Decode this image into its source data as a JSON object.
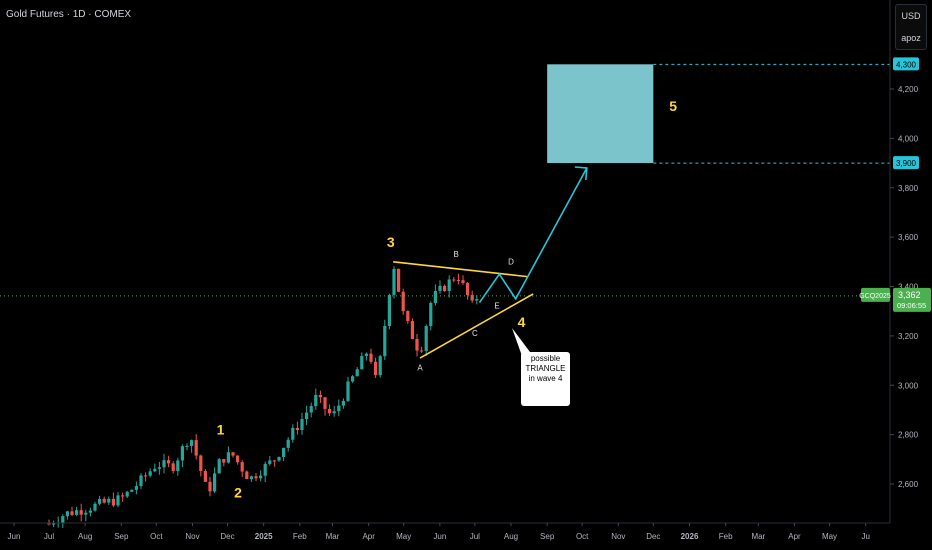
{
  "header": {
    "title": "Gold Futures · 1D · COMEX"
  },
  "scale": {
    "currency": "USD",
    "mode": "apoz"
  },
  "chart_data": {
    "type": "candlestick",
    "symbol": "GCQ2025",
    "last_price": 3362,
    "last_price_label": "3,362",
    "countdown": "09:06:55",
    "ylim": [
      2480,
      4420
    ],
    "y_ticks": [
      2600,
      2800,
      3000,
      3200,
      3400,
      3600,
      3800,
      4000,
      4200
    ],
    "y_tick_labels": [
      "2,600",
      "2,800",
      "3,000",
      "3,200",
      "3,400",
      "3,600",
      "3,800",
      "4,000",
      "4,200"
    ],
    "x_labels": [
      "Jun",
      "Jul",
      "Aug",
      "Sep",
      "Oct",
      "Nov",
      "Dec",
      "2025",
      "Feb",
      "Mar",
      "Apr",
      "May",
      "Jun",
      "Jul",
      "Aug",
      "Sep",
      "Oct",
      "Nov",
      "Dec",
      "2026",
      "Feb",
      "Mar",
      "Apr",
      "May",
      "Ju"
    ],
    "price_path": [
      {
        "date": "2024-07-01",
        "price": 2440
      },
      {
        "date": "2024-07-15",
        "price": 2480
      },
      {
        "date": "2024-08-01",
        "price": 2500
      },
      {
        "date": "2024-08-15",
        "price": 2520
      },
      {
        "date": "2024-09-01",
        "price": 2540
      },
      {
        "date": "2024-09-15",
        "price": 2600
      },
      {
        "date": "2024-10-01",
        "price": 2680
      },
      {
        "date": "2024-10-15",
        "price": 2670
      },
      {
        "date": "2024-10-30",
        "price": 2800
      },
      {
        "date": "2024-11-14",
        "price": 2560
      },
      {
        "date": "2024-11-25",
        "price": 2700
      },
      {
        "date": "2024-12-05",
        "price": 2720
      },
      {
        "date": "2024-12-20",
        "price": 2620
      },
      {
        "date": "2025-01-10",
        "price": 2700
      },
      {
        "date": "2025-02-01",
        "price": 2850
      },
      {
        "date": "2025-02-15",
        "price": 2950
      },
      {
        "date": "2025-03-01",
        "price": 2870
      },
      {
        "date": "2025-03-15",
        "price": 3000
      },
      {
        "date": "2025-04-01",
        "price": 3150
      },
      {
        "date": "2025-04-08",
        "price": 3000
      },
      {
        "date": "2025-04-22",
        "price": 3500
      },
      {
        "date": "2025-05-01",
        "price": 3280
      },
      {
        "date": "2025-05-15",
        "price": 3130
      },
      {
        "date": "2025-05-25",
        "price": 3350
      },
      {
        "date": "2025-06-05",
        "price": 3400
      },
      {
        "date": "2025-06-16",
        "price": 3450
      },
      {
        "date": "2025-06-30",
        "price": 3310
      },
      {
        "date": "2025-07-03",
        "price": 3362
      }
    ],
    "target_zone": {
      "from": 3900,
      "to": 4300,
      "label_low": "3,900",
      "label_high": "4,300"
    },
    "triangle_upper": [
      {
        "date": "2025-04-22",
        "price": 3500
      },
      {
        "date": "2025-08-15",
        "price": 3440
      }
    ],
    "triangle_lower": [
      {
        "date": "2025-05-15",
        "price": 3110
      },
      {
        "date": "2025-08-20",
        "price": 3370
      }
    ],
    "projection": [
      {
        "date": "2025-07-05",
        "price": 3335
      },
      {
        "date": "2025-07-22",
        "price": 3450
      },
      {
        "date": "2025-08-05",
        "price": 3350
      },
      {
        "date": "2025-10-05",
        "price": 3880
      }
    ],
    "wave_labels": [
      {
        "text": "1",
        "date": "2024-11-25",
        "price": 2800,
        "color": "#fdd835"
      },
      {
        "text": "2",
        "date": "2024-12-10",
        "price": 2545,
        "color": "#fdd835"
      },
      {
        "text": "3",
        "date": "2025-04-20",
        "price": 3560,
        "color": "#fdd835"
      },
      {
        "text": "4",
        "date": "2025-08-10",
        "price": 3235,
        "color": "#fdd835"
      },
      {
        "text": "5",
        "date": "2025-12-18",
        "price": 4110,
        "color": "#fdd835"
      }
    ],
    "sub_labels": [
      {
        "text": "A",
        "date": "2025-05-15",
        "price": 3060
      },
      {
        "text": "B",
        "date": "2025-06-15",
        "price": 3520
      },
      {
        "text": "C",
        "date": "2025-07-01",
        "price": 3200
      },
      {
        "text": "D",
        "date": "2025-08-01",
        "price": 3490
      },
      {
        "text": "E",
        "date": "2025-07-20",
        "price": 3310
      }
    ],
    "annotation": [
      "possible",
      "TRIANGLE",
      "in wave 4"
    ],
    "colors": {
      "up": "#26a69a",
      "down": "#ef5350",
      "triangle": "#fdd835",
      "projection": "#26c6da",
      "zone": "#7bc4cc",
      "price_line": "#4caf50"
    }
  }
}
